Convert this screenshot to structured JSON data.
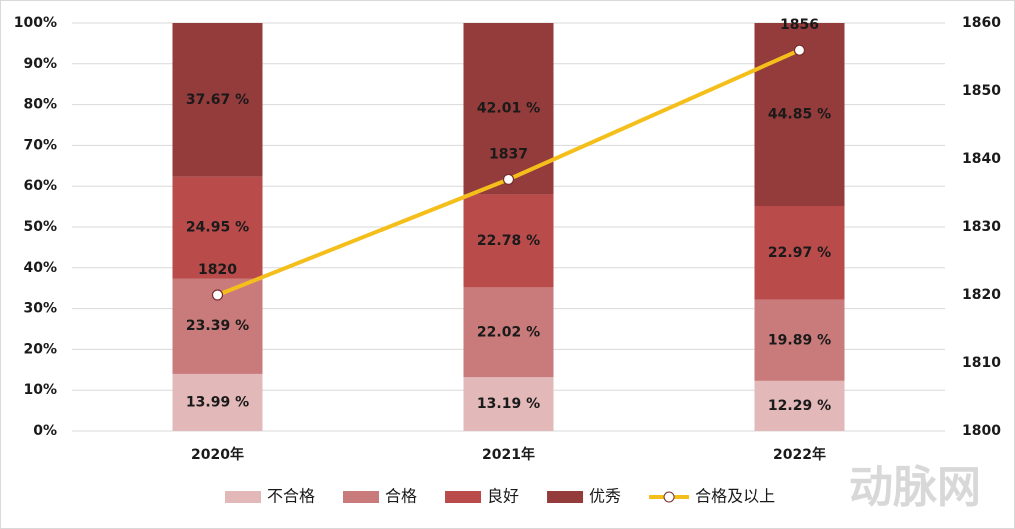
{
  "chart_data": {
    "type": "bar",
    "stacked": true,
    "categories": [
      "2020年",
      "2021年",
      "2022年"
    ],
    "series": [
      {
        "name": "不合格",
        "color": "#e2b8b8",
        "values": [
          13.99,
          13.19,
          12.29
        ],
        "value_labels": [
          "13.99 %",
          "13.19 %",
          "12.29 %"
        ]
      },
      {
        "name": "合格",
        "color": "#c97b7b",
        "values": [
          23.39,
          22.02,
          19.89
        ],
        "value_labels": [
          "23.39 %",
          "22.02 %",
          "19.89 %"
        ]
      },
      {
        "name": "良好",
        "color": "#b94b4b",
        "values": [
          24.95,
          22.78,
          22.97
        ],
        "value_labels": [
          "24.95 %",
          "22.78 %",
          "22.97 %"
        ]
      },
      {
        "name": "优秀",
        "color": "#943b3b",
        "values": [
          37.67,
          42.01,
          44.85
        ],
        "value_labels": [
          "37.67 %",
          "42.01 %",
          "44.85 %"
        ]
      },
      {
        "name": "合格及以上",
        "type": "line",
        "axis": "y2",
        "color": "#f5bf1b",
        "values": [
          1820,
          1837,
          1856
        ]
      }
    ],
    "ylim": [
      0,
      100
    ],
    "yticks": [
      {
        "value": 0,
        "label": "0%"
      },
      {
        "value": 10,
        "label": "10%"
      },
      {
        "value": 20,
        "label": "20%"
      },
      {
        "value": 30,
        "label": "30%"
      },
      {
        "value": 40,
        "label": "40%"
      },
      {
        "value": 50,
        "label": "50%"
      },
      {
        "value": 60,
        "label": "60%"
      },
      {
        "value": 70,
        "label": "70%"
      },
      {
        "value": 80,
        "label": "80%"
      },
      {
        "value": 90,
        "label": "90%"
      },
      {
        "value": 100,
        "label": "100%"
      }
    ],
    "y2lim": [
      1800,
      1860
    ],
    "y2ticks": [
      1800,
      1810,
      1820,
      1830,
      1840,
      1850,
      1860
    ],
    "grid": true,
    "legend": "bottom",
    "watermark": "动脉网"
  }
}
